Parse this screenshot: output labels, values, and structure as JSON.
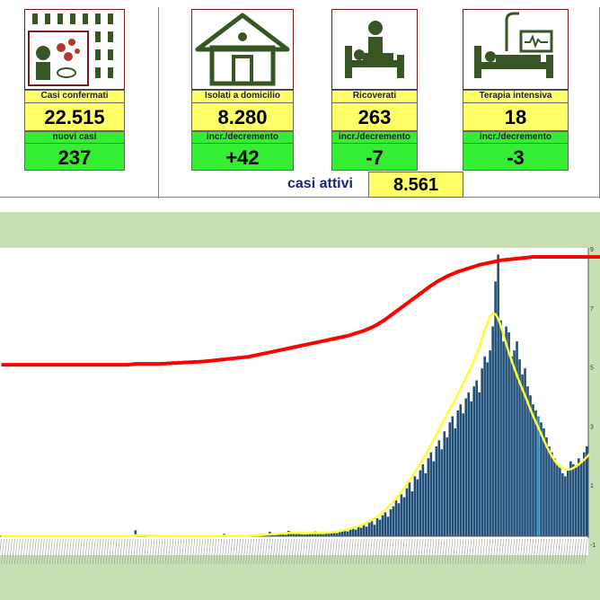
{
  "cards": [
    {
      "label": "Casi confermati",
      "value": "22.515",
      "sub_label": "nuovi casi",
      "sub_value": "237",
      "icon": "crowd-infection-icon"
    },
    {
      "label": "Isolati a domicilio",
      "value": "8.280",
      "sub_label": "incr./decremento",
      "sub_value": "+42",
      "icon": "house-icon"
    },
    {
      "label": "Ricoverati",
      "value": "263",
      "sub_label": "incr./decremento",
      "sub_value": "-7",
      "icon": "hospital-bed-icon"
    },
    {
      "label": "Terapia intensiva",
      "value": "18",
      "sub_label": "incr./decremento",
      "sub_value": "-3",
      "icon": "icu-bed-icon"
    }
  ],
  "active": {
    "label": "casi attivi",
    "value": "8.561"
  },
  "colors": {
    "bars": "#1f4e79",
    "cumulative_line": "#ff0000",
    "moving_average": "#ffff33",
    "frame": "#c6e0b4",
    "icon": "#375623"
  },
  "chart_data": {
    "type": "bar",
    "title": "",
    "xlabel": "",
    "ylabel": "",
    "y2_tick_labels": [
      "9",
      "7",
      "5",
      "3",
      "1",
      "-1"
    ],
    "ylim": [
      -100,
      950
    ],
    "grid": false,
    "legend": "none",
    "n_days": 220,
    "highlighted_day": 200,
    "series": [
      {
        "name": "",
        "kind": "bar",
        "values": [
          0,
          0,
          0,
          0,
          0,
          0,
          0,
          0,
          0,
          0,
          0,
          0,
          0,
          0,
          0,
          0,
          0,
          0,
          0,
          0,
          0,
          0,
          0,
          0,
          0,
          0,
          0,
          0,
          0,
          0,
          0,
          0,
          0,
          0,
          0,
          0,
          0,
          0,
          0,
          0,
          0,
          0,
          0,
          0,
          0,
          0,
          0,
          0,
          0,
          0,
          20,
          2,
          0,
          1,
          0,
          0,
          0,
          0,
          0,
          0,
          0,
          0,
          0,
          0,
          0,
          0,
          0,
          0,
          0,
          0,
          0,
          0,
          0,
          0,
          0,
          0,
          0,
          0,
          0,
          0,
          0,
          0,
          0,
          8,
          0,
          0,
          0,
          0,
          0,
          0,
          0,
          0,
          3,
          5,
          1,
          6,
          3,
          2,
          4,
          7,
          15,
          8,
          4,
          6,
          9,
          12,
          5,
          18,
          14,
          10,
          8,
          11,
          7,
          6,
          12,
          9,
          14,
          16,
          10,
          8,
          7,
          9,
          11,
          15,
          12,
          10,
          14,
          18,
          20,
          16,
          25,
          30,
          22,
          35,
          28,
          40,
          32,
          45,
          50,
          38,
          60,
          55,
          70,
          80,
          65,
          90,
          100,
          120,
          110,
          140,
          130,
          160,
          180,
          150,
          200,
          190,
          220,
          240,
          210,
          260,
          280,
          250,
          300,
          320,
          290,
          350,
          330,
          380,
          400,
          360,
          420,
          440,
          410,
          460,
          480,
          450,
          500,
          520,
          480,
          560,
          600,
          580,
          620,
          700,
          850,
          940,
          720,
          650,
          700,
          680,
          600,
          620,
          650,
          590,
          540,
          560,
          500,
          470,
          440,
          420,
          400,
          380,
          360,
          330,
          300,
          280,
          260,
          240,
          230,
          210,
          200,
          220,
          250,
          240,
          230,
          260,
          250,
          280,
          300
        ]
      },
      {
        "name": "",
        "kind": "line",
        "values": [
          0,
          0,
          0,
          0,
          0,
          0,
          0,
          0,
          0,
          0,
          0,
          0,
          0,
          0,
          0,
          0,
          0,
          0,
          0,
          0,
          0,
          0,
          0,
          0,
          0,
          0,
          0,
          0,
          0,
          0,
          0,
          0,
          0,
          0,
          0,
          0,
          0,
          0,
          0,
          0,
          0,
          0,
          0,
          0,
          0,
          0,
          0,
          0,
          1,
          2,
          3,
          3,
          3,
          3,
          3,
          2,
          2,
          1,
          1,
          0,
          0,
          0,
          0,
          0,
          0,
          0,
          0,
          0,
          0,
          0,
          0,
          0,
          0,
          0,
          0,
          0,
          0,
          0,
          0,
          0,
          0,
          0,
          1,
          1,
          1,
          1,
          1,
          1,
          1,
          1,
          2,
          2,
          2,
          3,
          3,
          3,
          4,
          4,
          5,
          6,
          6,
          7,
          7,
          8,
          9,
          9,
          10,
          11,
          11,
          11,
          11,
          11,
          10,
          10,
          10,
          11,
          11,
          11,
          11,
          11,
          11,
          12,
          12,
          13,
          14,
          15,
          17,
          19,
          21,
          23,
          25,
          28,
          31,
          34,
          37,
          41,
          45,
          50,
          55,
          60,
          66,
          73,
          80,
          88,
          97,
          106,
          116,
          127,
          138,
          150,
          162,
          175,
          188,
          201,
          215,
          229,
          244,
          259,
          275,
          291,
          307,
          323,
          340,
          357,
          374,
          391,
          408,
          425,
          442,
          459,
          476,
          494,
          512,
          530,
          549,
          568,
          588,
          610,
          635,
          662,
          690,
          715,
          735,
          745,
          740,
          725,
          700,
          670,
          640,
          610,
          585,
          560,
          535,
          512,
          490,
          468,
          445,
          422,
          400,
          380,
          360,
          340,
          320,
          300,
          282,
          266,
          252,
          240,
          232,
          226,
          222,
          222,
          224,
          228,
          234,
          240,
          248,
          256,
          265,
          275
        ]
      },
      {
        "name": "",
        "kind": "cumulative",
        "values": [
          0.62,
          0.62,
          0.62,
          0.62,
          0.62,
          0.62,
          0.62,
          0.62,
          0.62,
          0.62,
          0.62,
          0.62,
          0.62,
          0.62,
          0.62,
          0.62,
          0.62,
          0.62,
          0.62,
          0.62,
          0.62,
          0.62,
          0.62,
          0.62,
          0.62,
          0.62,
          0.62,
          0.62,
          0.62,
          0.62,
          0.62,
          0.62,
          0.62,
          0.62,
          0.62,
          0.62,
          0.62,
          0.62,
          0.62,
          0.62,
          0.62,
          0.62,
          0.62,
          0.62,
          0.62,
          0.62,
          0.62,
          0.62,
          0.621,
          0.622,
          0.623,
          0.623,
          0.623,
          0.623,
          0.623,
          0.623,
          0.623,
          0.623,
          0.623,
          0.623,
          0.624,
          0.624,
          0.625,
          0.625,
          0.626,
          0.626,
          0.627,
          0.627,
          0.628,
          0.628,
          0.629,
          0.629,
          0.63,
          0.63,
          0.631,
          0.631,
          0.632,
          0.633,
          0.634,
          0.635,
          0.636,
          0.637,
          0.638,
          0.639,
          0.64,
          0.641,
          0.642,
          0.643,
          0.644,
          0.645,
          0.646,
          0.647,
          0.648,
          0.65,
          0.652,
          0.654,
          0.656,
          0.658,
          0.66,
          0.662,
          0.664,
          0.666,
          0.668,
          0.67,
          0.672,
          0.674,
          0.676,
          0.678,
          0.68,
          0.682,
          0.684,
          0.686,
          0.688,
          0.69,
          0.692,
          0.694,
          0.696,
          0.698,
          0.7,
          0.702,
          0.704,
          0.706,
          0.708,
          0.71,
          0.712,
          0.714,
          0.716,
          0.718,
          0.72,
          0.722,
          0.725,
          0.728,
          0.731,
          0.734,
          0.737,
          0.74,
          0.744,
          0.748,
          0.752,
          0.757,
          0.762,
          0.768,
          0.774,
          0.78,
          0.787,
          0.794,
          0.801,
          0.808,
          0.815,
          0.822,
          0.829,
          0.836,
          0.843,
          0.85,
          0.857,
          0.864,
          0.871,
          0.878,
          0.885,
          0.892,
          0.899,
          0.905,
          0.911,
          0.917,
          0.922,
          0.927,
          0.932,
          0.936,
          0.94,
          0.944,
          0.948,
          0.951,
          0.954,
          0.957,
          0.96,
          0.963,
          0.966,
          0.969,
          0.972,
          0.974,
          0.976,
          0.978,
          0.98,
          0.982,
          0.984,
          0.986,
          0.988,
          0.989,
          0.99,
          0.991,
          0.992,
          0.993,
          0.994,
          0.995,
          0.996,
          0.997,
          0.998,
          0.999,
          1.0,
          1.0,
          1.0,
          1.0,
          1.0,
          1.0,
          1.0,
          1.0,
          1.0,
          1.0,
          1.0,
          1.0,
          1.0,
          1.0,
          1.0,
          1.0,
          1.0,
          1.0,
          1.0,
          1.0,
          1.0,
          1.0,
          1.0,
          1.0,
          1.0,
          1.0,
          1.0
        ]
      }
    ]
  }
}
